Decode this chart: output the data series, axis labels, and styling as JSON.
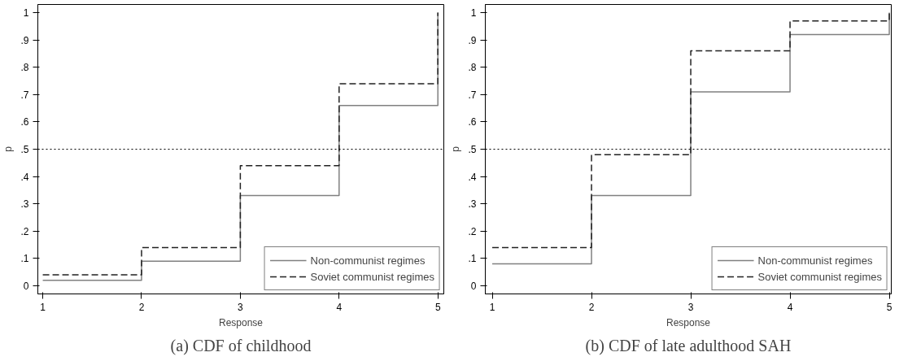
{
  "chart_data": [
    {
      "type": "step",
      "title": "(a) CDF of childhood",
      "xlabel": "Response",
      "ylabel": "p",
      "x": [
        1,
        2,
        3,
        4,
        5
      ],
      "xlim": [
        0.95,
        5.06
      ],
      "ylim": [
        -0.03,
        1.03
      ],
      "xticks": [
        1,
        2,
        3,
        4,
        5
      ],
      "yticks": [
        {
          "value": 0,
          "label": "0"
        },
        {
          "value": 0.1,
          "label": ".1"
        },
        {
          "value": 0.2,
          "label": ".2"
        },
        {
          "value": 0.3,
          "label": ".3"
        },
        {
          "value": 0.4,
          "label": ".4"
        },
        {
          "value": 0.5,
          "label": ".5"
        },
        {
          "value": 0.6,
          "label": ".6"
        },
        {
          "value": 0.7,
          "label": ".7"
        },
        {
          "value": 0.8,
          "label": ".8"
        },
        {
          "value": 0.9,
          "label": ".9"
        },
        {
          "value": 1,
          "label": "1"
        }
      ],
      "legend": "bottom right",
      "grid": false,
      "ref_lines": [
        {
          "axis": "y",
          "value": 0.5,
          "line_style": "dotted",
          "color": "#000000"
        }
      ],
      "series": [
        {
          "name": "Non-communist regimes",
          "color": "#808080",
          "line_style": "solid",
          "values": [
            0.02,
            0.09,
            0.33,
            0.66,
            1
          ]
        },
        {
          "name": "Soviet communist regimes",
          "color": "#222222",
          "line_style": "dashed",
          "values": [
            0.04,
            0.14,
            0.44,
            0.74,
            1
          ]
        }
      ]
    },
    {
      "type": "step",
      "title": "(b) CDF of late adulthood SAH",
      "xlabel": "Response",
      "ylabel": "p",
      "x": [
        1,
        2,
        3,
        4,
        5
      ],
      "xlim": [
        0.93,
        5.02
      ],
      "ylim": [
        -0.03,
        1.03
      ],
      "xticks": [
        1,
        2,
        3,
        4,
        5
      ],
      "yticks": [
        {
          "value": 0,
          "label": "0"
        },
        {
          "value": 0.1,
          "label": ".1"
        },
        {
          "value": 0.2,
          "label": ".2"
        },
        {
          "value": 0.3,
          "label": ".3"
        },
        {
          "value": 0.4,
          "label": ".4"
        },
        {
          "value": 0.5,
          "label": ".5"
        },
        {
          "value": 0.6,
          "label": ".6"
        },
        {
          "value": 0.7,
          "label": ".7"
        },
        {
          "value": 0.8,
          "label": ".8"
        },
        {
          "value": 0.9,
          "label": ".9"
        },
        {
          "value": 1,
          "label": "1"
        }
      ],
      "legend": "bottom right",
      "grid": false,
      "ref_lines": [
        {
          "axis": "y",
          "value": 0.5,
          "line_style": "dotted",
          "color": "#000000"
        }
      ],
      "series": [
        {
          "name": "Non-communist regimes",
          "color": "#808080",
          "line_style": "solid",
          "values": [
            0.08,
            0.33,
            0.71,
            0.92,
            1
          ]
        },
        {
          "name": "Soviet communist regimes",
          "color": "#222222",
          "line_style": "dashed",
          "values": [
            0.14,
            0.48,
            0.86,
            0.97,
            1
          ]
        }
      ]
    }
  ]
}
